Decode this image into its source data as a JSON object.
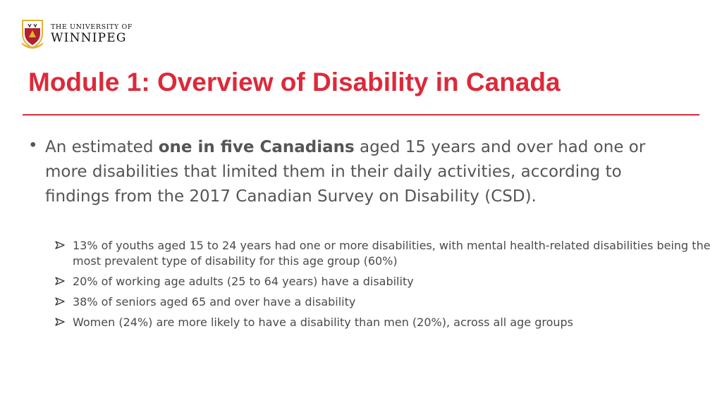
{
  "logo": {
    "line1": "THE UNIVERSITY OF",
    "line2": "WINNIPEG",
    "icon": "crest-icon",
    "colors": {
      "crest_red": "#b22030",
      "crest_gold": "#e2b232"
    }
  },
  "slide": {
    "title": "Module 1: Overview of Disability in Canada",
    "accent_color": "#dc2a3a",
    "main_bullet": {
      "before": "An estimated ",
      "bold": "one in five Canadians",
      "after": " aged 15 years and over had one or more disabilities that limited them in their daily activities, according to findings from the 2017 Canadian Survey on Disability (CSD)."
    },
    "sub_bullets": [
      "13% of youths aged 15 to 24 years had one or more disabilities, with mental health-related disabilities being the most prevalent type of disability for this age group (60%)",
      "20% of working age adults (25 to 64 years) have a disability",
      "38% of seniors aged 65 and over have a disability",
      "Women (24%) are more likely to have a disability than men (20%), across all age groups"
    ]
  }
}
